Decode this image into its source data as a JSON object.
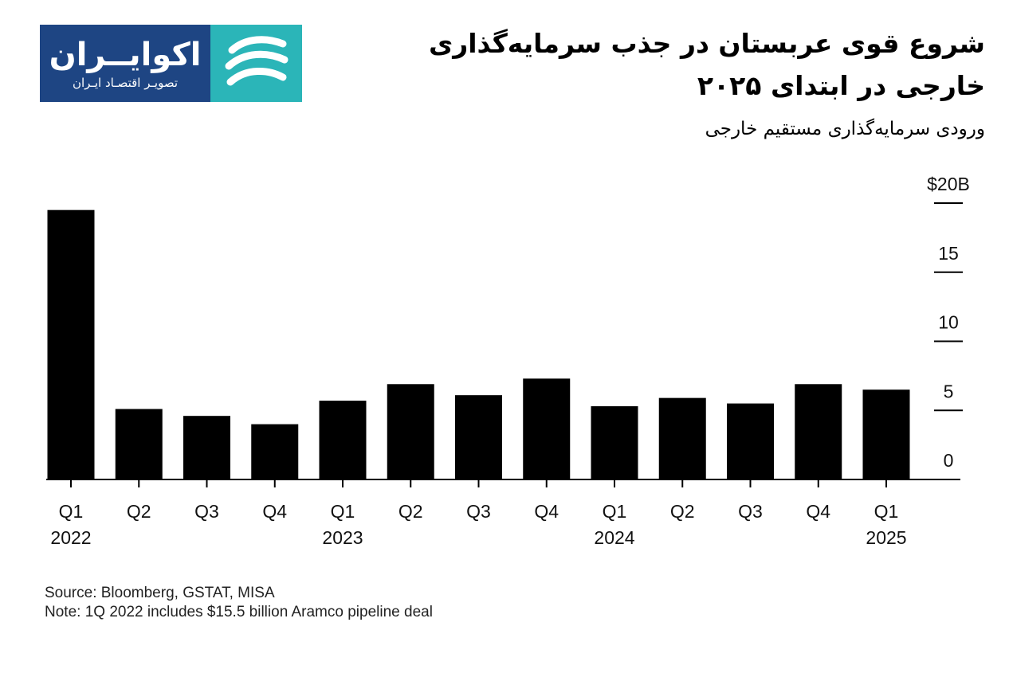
{
  "logo": {
    "name": "اکوایــران",
    "tagline": "تصویـر اقتصـاد ایـران",
    "colors": {
      "text_bg": "#1e4583",
      "mark_bg": "#2bb5b8"
    }
  },
  "header": {
    "title": "شروع قوی عربستان در جذب سرمایه‌گذاری خارجی در ابتدای ۲۰۲۵",
    "subtitle": "ورودی سرمایه‌گذاری مستقیم خارجی"
  },
  "chart_data": {
    "type": "bar",
    "title": "شروع قوی عربستان در جذب سرمایه‌گذاری خارجی در ابتدای ۲۰۲۵",
    "subtitle": "ورودی سرمایه‌گذاری مستقیم خارجی",
    "categories": [
      "Q1 2022",
      "Q2 2022",
      "Q3 2022",
      "Q4 2022",
      "Q1 2023",
      "Q2 2023",
      "Q3 2023",
      "Q4 2023",
      "Q1 2024",
      "Q2 2024",
      "Q3 2024",
      "Q4 2024",
      "Q1 2025"
    ],
    "quarter_labels": [
      "Q1",
      "Q2",
      "Q3",
      "Q4",
      "Q1",
      "Q2",
      "Q3",
      "Q4",
      "Q1",
      "Q2",
      "Q3",
      "Q4",
      "Q1"
    ],
    "year_labels": [
      "2022",
      "",
      "",
      "",
      "2023",
      "",
      "",
      "",
      "2024",
      "",
      "",
      "",
      "2025"
    ],
    "values": [
      19.5,
      5.1,
      4.6,
      4.0,
      5.7,
      6.9,
      6.1,
      7.3,
      5.3,
      5.9,
      5.5,
      6.9,
      6.5
    ],
    "ylim": [
      0,
      20
    ],
    "yticks": [
      0,
      5,
      10,
      15,
      20
    ],
    "ytick_labels": [
      "0",
      "5",
      "10",
      "15",
      "$20B"
    ],
    "y_axis_position": "right",
    "grid": false,
    "bar_color": "#000000"
  },
  "footer": {
    "source": "Source: Bloomberg, GSTAT, MISA",
    "note": "Note: 1Q 2022 includes $15.5 billion Aramco pipeline deal"
  }
}
